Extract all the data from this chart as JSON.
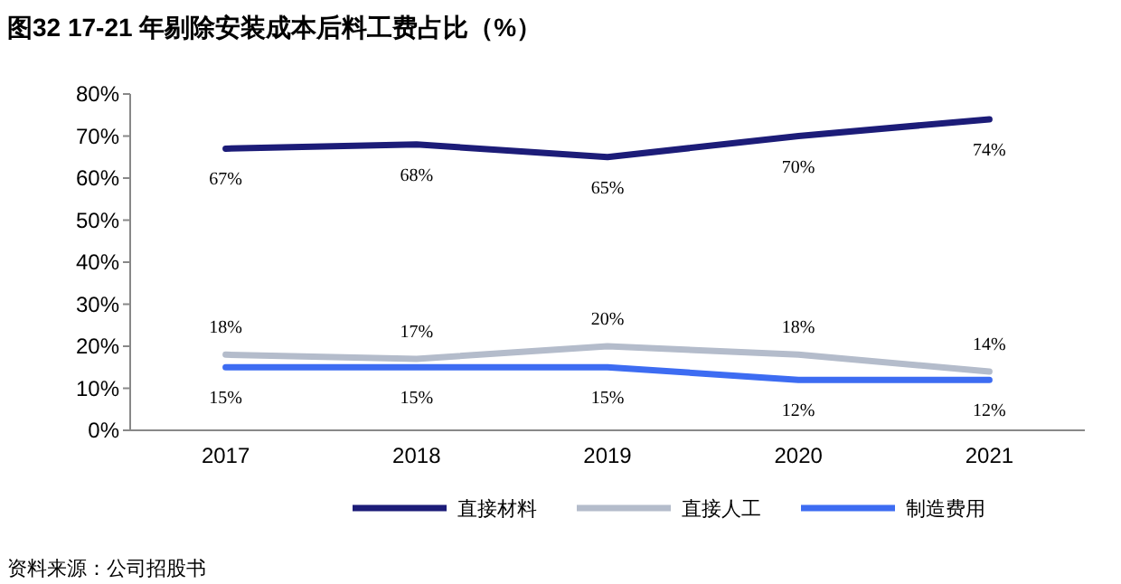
{
  "chart_data": {
    "type": "line",
    "title": "图32 17-21 年剔除安装成本后料工费占比（%）",
    "categories": [
      "2017",
      "2018",
      "2019",
      "2020",
      "2021"
    ],
    "series": [
      {
        "name": "直接材料",
        "color": "#1c1c78",
        "values": [
          67,
          68,
          65,
          70,
          74
        ],
        "value_labels": [
          "67%",
          "68%",
          "65%",
          "70%",
          "74%"
        ]
      },
      {
        "name": "直接人工",
        "color": "#b4bccb",
        "values": [
          18,
          17,
          20,
          18,
          14
        ],
        "value_labels": [
          "18%",
          "17%",
          "20%",
          "18%",
          "14%"
        ]
      },
      {
        "name": "制造费用",
        "color": "#3d6cf2",
        "values": [
          15,
          15,
          15,
          12,
          12
        ],
        "value_labels": [
          "15%",
          "15%",
          "15%",
          "12%",
          "12%"
        ]
      }
    ],
    "ylim": [
      0,
      80
    ],
    "yticks": [
      {
        "value": 0,
        "label": "0%"
      },
      {
        "value": 10,
        "label": "10%"
      },
      {
        "value": 20,
        "label": "20%"
      },
      {
        "value": 30,
        "label": "30%"
      },
      {
        "value": 40,
        "label": "40%"
      },
      {
        "value": 50,
        "label": "50%"
      },
      {
        "value": 60,
        "label": "60%"
      },
      {
        "value": 70,
        "label": "70%"
      },
      {
        "value": 80,
        "label": "80%"
      }
    ],
    "grid": false,
    "legend": "bottom",
    "marker": "none",
    "line_style": "solid",
    "annotations": [
      "资料来源：公司招股书"
    ]
  }
}
